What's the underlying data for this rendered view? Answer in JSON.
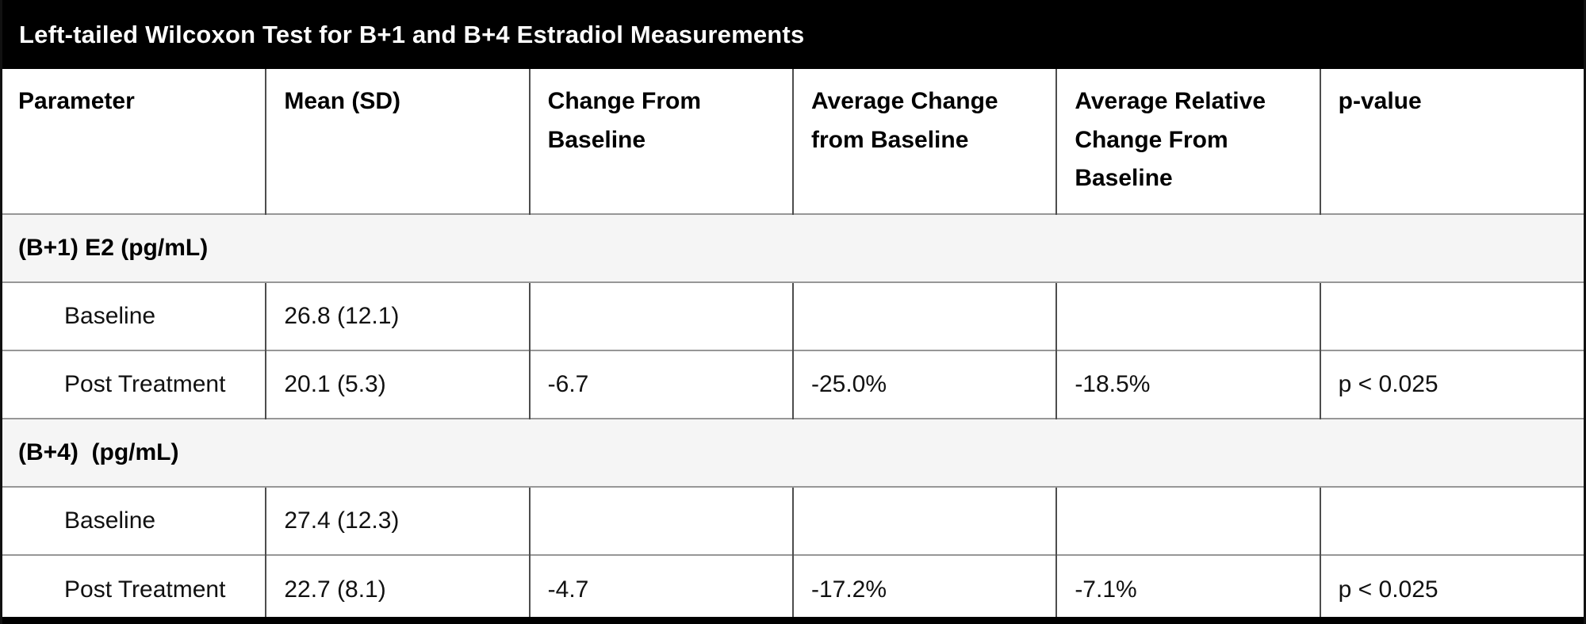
{
  "chart_data": {
    "type": "table",
    "title": "Left-tailed Wilcoxon Test for B+1 and B+4 Estradiol Measurements",
    "columns": [
      "Parameter",
      "Mean (SD)",
      "Change From Baseline",
      "Average Change from Baseline",
      "Average Relative Change From Baseline",
      "p-value"
    ],
    "row_types": [
      "section",
      "data",
      "data",
      "section",
      "data",
      "data"
    ],
    "rows": [
      [
        "(B+1) E2 (pg/mL)",
        "",
        "",
        "",
        "",
        ""
      ],
      [
        "Baseline",
        "26.8 (12.1)",
        "",
        "",
        "",
        ""
      ],
      [
        "Post Treatment",
        "20.1 (5.3)",
        "-6.7",
        "-25.0%",
        "-18.5%",
        "p < 0.025"
      ],
      [
        "(B+4)  (pg/mL)",
        "",
        "",
        "",
        "",
        ""
      ],
      [
        "Baseline",
        "27.4 (12.3)",
        "",
        "",
        "",
        ""
      ],
      [
        "Post Treatment",
        "22.7 (8.1)",
        "-4.7",
        "-17.2%",
        "-7.1%",
        "p < 0.025"
      ]
    ],
    "colors": {
      "title_bar_bg": "#000000",
      "title_text": "#ffffff",
      "section_row_bg": "#f5f5f5",
      "row_border": "#979797",
      "column_border": "#4d4d4d",
      "outer_border": "#111111",
      "body_text": "#111111"
    }
  }
}
